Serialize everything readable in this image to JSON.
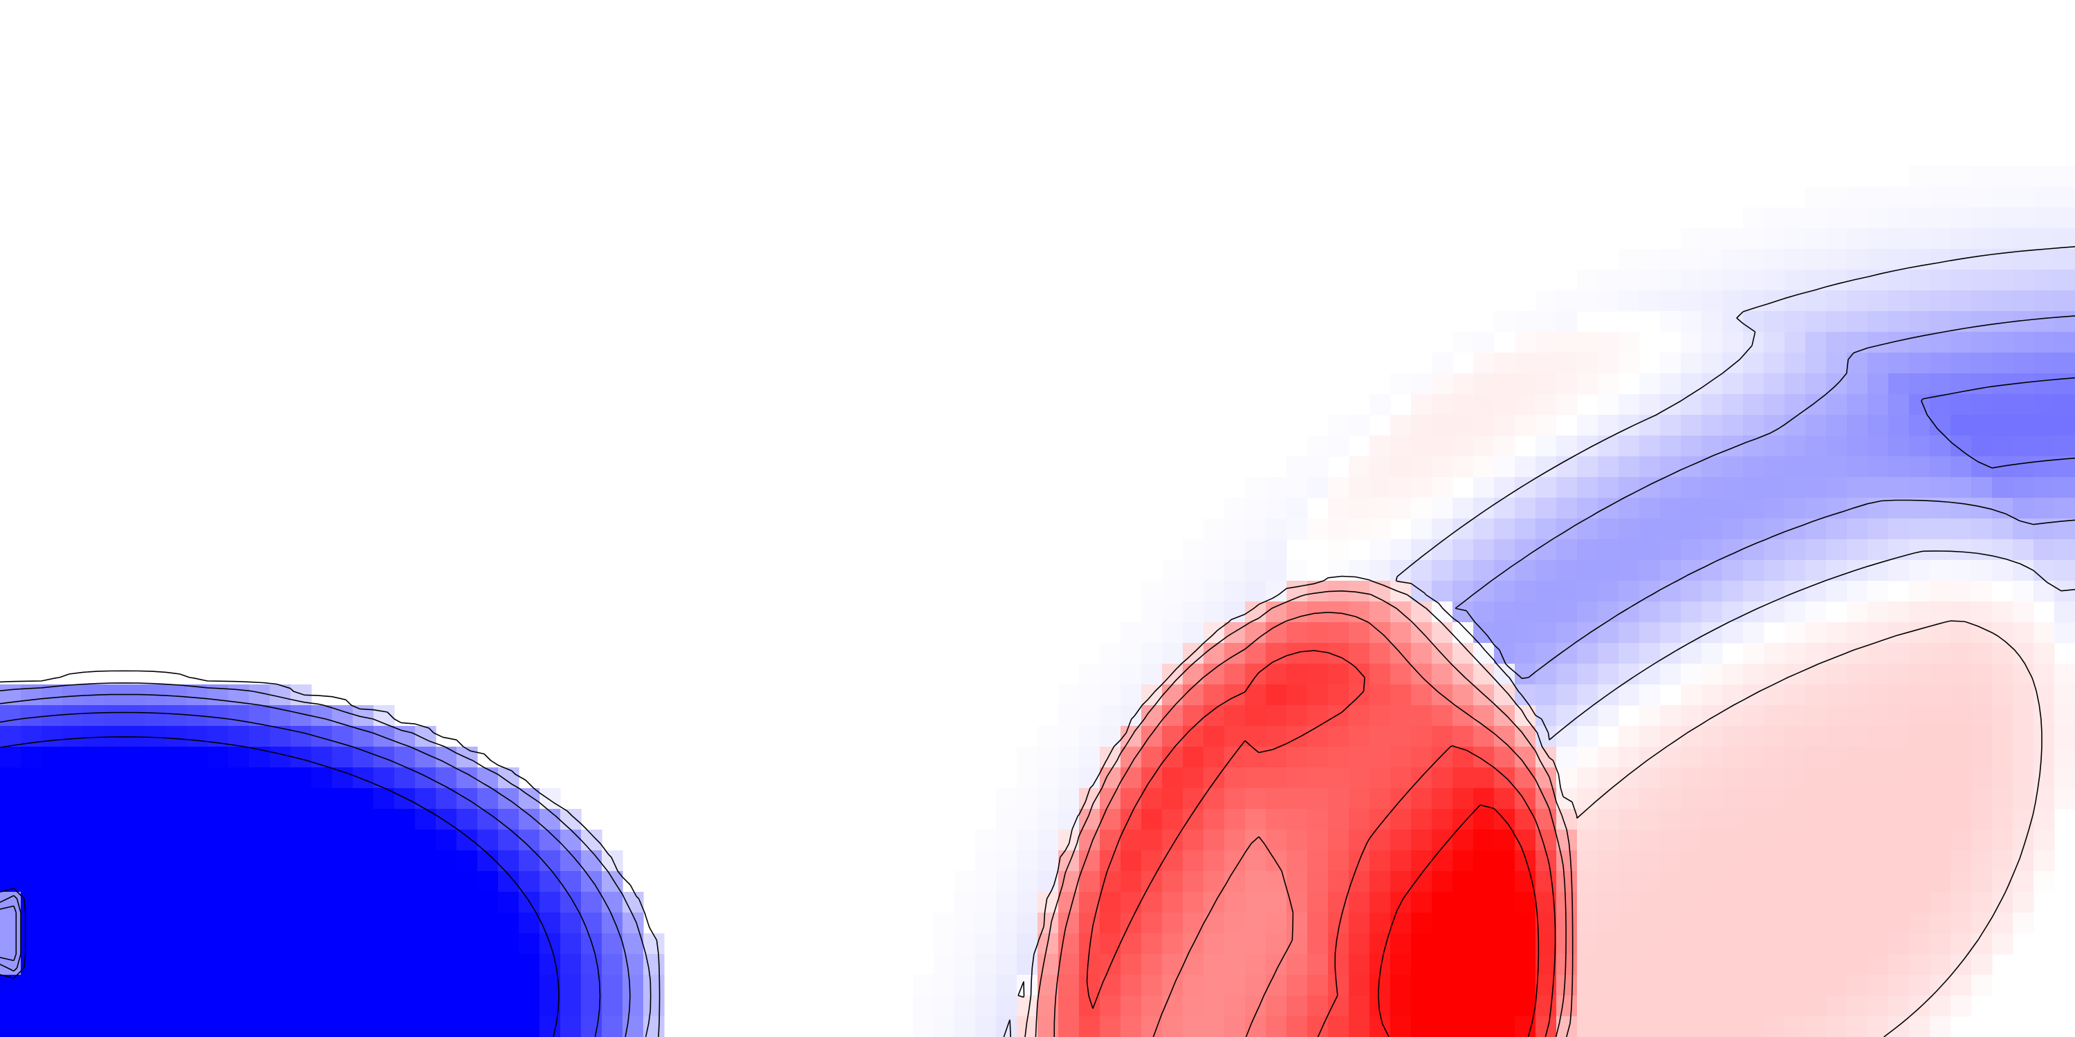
{
  "chart_data": {
    "type": "heatmap",
    "title": "",
    "xlabel": "",
    "ylabel": "",
    "colormap": [
      "#0000ff",
      "#ffffff",
      "#ff0000"
    ],
    "color_range": [
      -1,
      1
    ],
    "grid": false,
    "legend": "none",
    "x_range": [
      0,
      1
    ],
    "y_range": [
      0,
      0.5
    ],
    "features": [
      {
        "name": "negative-core-left",
        "sign": "negative",
        "center": [
          0.06,
          0.02
        ],
        "radius": [
          0.26,
          0.155
        ],
        "peak": -1.0,
        "tilt": 0
      },
      {
        "name": "positive-core-center",
        "sign": "positive",
        "center": [
          0.625,
          0.015
        ],
        "radius": [
          0.13,
          0.21
        ],
        "peak": 1.0,
        "tilt": -12
      },
      {
        "name": "positive-halo-right",
        "sign": "positive",
        "center": [
          0.8,
          0.15
        ],
        "radius": [
          0.2,
          0.2
        ],
        "peak": 0.18,
        "tilt": 0
      },
      {
        "name": "negative-arc-upper",
        "sign": "negative",
        "center": [
          1.04,
          -0.15
        ],
        "radius": [
          0.49,
          0.45
        ],
        "peak": -0.55,
        "tilt": 0,
        "band": true
      },
      {
        "name": "small-dipole-left-edge",
        "sign": "positive",
        "center": [
          0.004,
          0.05
        ],
        "radius": [
          0.008,
          0.02
        ],
        "peak": 0.6,
        "tilt": 0
      }
    ],
    "contour_levels": [
      -0.9,
      -0.7,
      -0.5,
      -0.3,
      -0.1,
      0.1,
      0.3,
      0.5,
      0.7,
      0.9
    ]
  },
  "colors": {
    "negative": "#0000ff",
    "positive": "#ff0000",
    "neutral": "#ffffff",
    "contour": "#000000"
  }
}
